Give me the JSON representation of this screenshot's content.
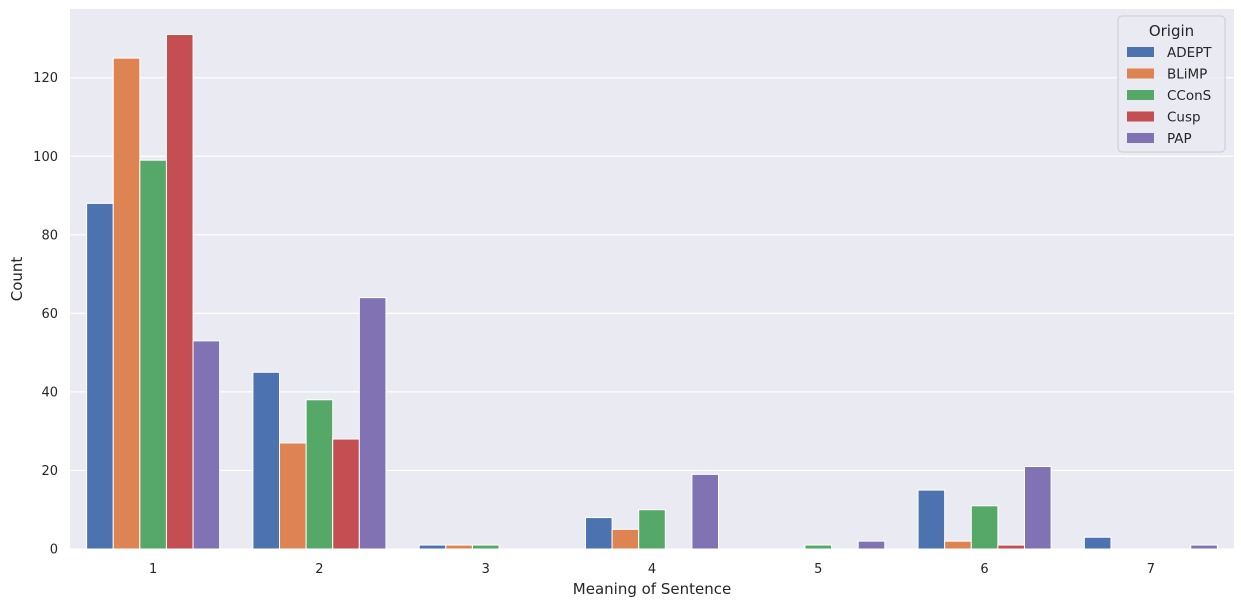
{
  "chart_data": {
    "type": "bar",
    "title": "",
    "xlabel": "Meaning of Sentence",
    "ylabel": "Count",
    "categories": [
      "1",
      "2",
      "3",
      "4",
      "5",
      "6",
      "7"
    ],
    "ylim": [
      0,
      137.5
    ],
    "yticks": [
      0,
      20,
      40,
      60,
      80,
      100,
      120
    ],
    "grid": true,
    "legend": {
      "title": "Origin",
      "placement": "top-right"
    },
    "series": [
      {
        "name": "ADEPT",
        "color": "#4c72b0",
        "values": [
          88,
          45,
          1,
          8,
          0,
          15,
          3
        ]
      },
      {
        "name": "BLiMP",
        "color": "#dd8452",
        "values": [
          125,
          27,
          1,
          5,
          0,
          2,
          0
        ]
      },
      {
        "name": "CConS",
        "color": "#55a868",
        "values": [
          99,
          38,
          1,
          10,
          1,
          11,
          0
        ]
      },
      {
        "name": "Cusp",
        "color": "#c44e52",
        "values": [
          131,
          28,
          0,
          0,
          0,
          1,
          0
        ]
      },
      {
        "name": "PAP",
        "color": "#8172b3",
        "values": [
          53,
          64,
          0,
          19,
          2,
          21,
          1
        ]
      }
    ]
  },
  "style": {
    "plot_background": "#eaeaf2",
    "grid_color": "#ffffff",
    "text_color": "#262626"
  }
}
